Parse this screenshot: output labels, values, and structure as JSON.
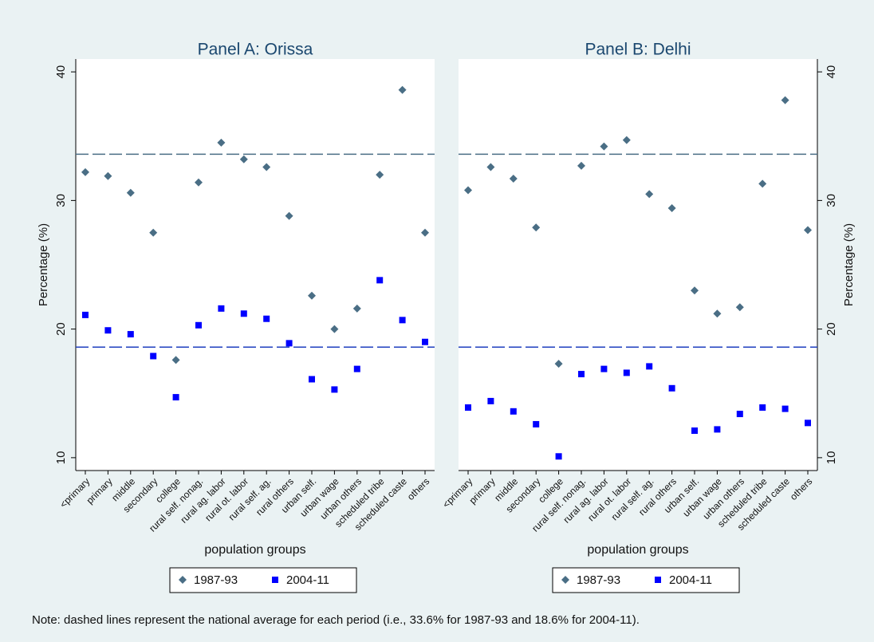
{
  "chart_data": [
    {
      "type": "dot",
      "title": "Panel A: Orissa",
      "y_label": "Percentage (%)",
      "x_label": "population groups",
      "y_axis_side": "left",
      "categories": [
        "<primary",
        "primary",
        "middle",
        "secondary",
        "college",
        "rural self. nonag.",
        "rural ag. labor",
        "rural ot. labor",
        "rural self. ag.",
        "rural others",
        "urban self.",
        "urban wage",
        "urban others",
        "scheduled tribe",
        "scheduled caste",
        "others"
      ],
      "series": [
        {
          "name": "1987-93",
          "color": "#4a6e85",
          "marker": "diamond",
          "values": [
            32.2,
            31.9,
            30.6,
            27.5,
            17.6,
            31.4,
            34.5,
            33.2,
            32.6,
            28.8,
            22.6,
            20.0,
            21.6,
            32.0,
            38.6,
            27.5
          ]
        },
        {
          "name": "2004-11",
          "color": "#0000ff",
          "marker": "square",
          "values": [
            21.1,
            19.9,
            19.6,
            17.9,
            14.7,
            20.3,
            21.6,
            21.2,
            20.8,
            18.9,
            16.1,
            15.3,
            16.9,
            23.8,
            20.7,
            19.0
          ]
        }
      ],
      "hlines": [
        {
          "value": 33.6,
          "color": "#4a6e85"
        },
        {
          "value": 18.6,
          "color": "#1f3fbf"
        }
      ],
      "ylim": [
        9,
        41
      ],
      "yticks": [
        10,
        20,
        30,
        40
      ]
    },
    {
      "type": "dot",
      "title": "Panel B: Delhi",
      "y_label": "Percentage (%)",
      "x_label": "population groups",
      "y_axis_side": "right",
      "categories": [
        "<primary",
        "primary",
        "middle",
        "secondary",
        "college",
        "rural self. nonag.",
        "rural ag. labor",
        "rural ot. labor",
        "rural self. ag.",
        "rural others",
        "urban self.",
        "urban wage",
        "urban others",
        "scheduled tribe",
        "scheduled caste",
        "others"
      ],
      "series": [
        {
          "name": "1987-93",
          "color": "#4a6e85",
          "marker": "diamond",
          "values": [
            30.8,
            32.6,
            31.7,
            27.9,
            17.3,
            32.7,
            34.2,
            34.7,
            30.5,
            29.4,
            23.0,
            21.2,
            21.7,
            31.3,
            37.8,
            27.7
          ]
        },
        {
          "name": "2004-11",
          "color": "#0000ff",
          "marker": "square",
          "values": [
            13.9,
            14.4,
            13.6,
            12.6,
            10.1,
            16.5,
            16.9,
            16.6,
            17.1,
            15.4,
            12.1,
            12.2,
            13.4,
            13.9,
            13.8,
            12.7
          ]
        }
      ],
      "hlines": [
        {
          "value": 33.6,
          "color": "#4a6e85"
        },
        {
          "value": 18.6,
          "color": "#1f3fbf"
        }
      ],
      "ylim": [
        9,
        41
      ],
      "yticks": [
        10,
        20,
        30,
        40
      ]
    }
  ],
  "note": "Note: dashed lines represent the national average for each period (i.e., 33.6% for 1987-93 and 18.6% for 2004-11)."
}
